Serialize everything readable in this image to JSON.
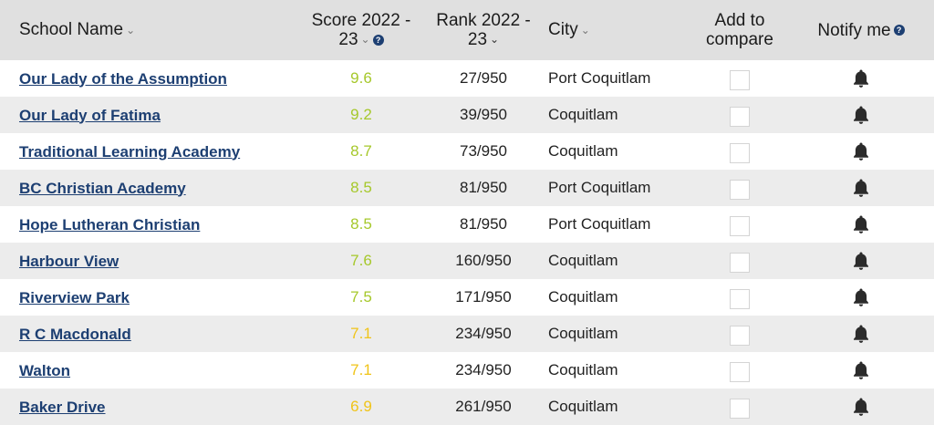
{
  "header": {
    "school_name": "School Name",
    "score_line1": "Score 2022 -",
    "score_line2": "23",
    "rank_line1": "Rank 2022 -",
    "rank_line2": "23",
    "city": "City",
    "compare_line1": "Add to",
    "compare_line2": "compare",
    "notify": "Notify me",
    "info_glyph": "?"
  },
  "colors": {
    "score_green": "#a6c82b",
    "score_yellow": "#f0c419",
    "link": "#1d3f72",
    "header_bg": "#e0e0e0",
    "stripe_bg": "#ececec"
  },
  "rows": [
    {
      "name": "Our Lady of the Assumption",
      "score": "9.6",
      "rank": "27/950",
      "city": "Port Coquitlam"
    },
    {
      "name": "Our Lady of Fatima",
      "score": "9.2",
      "rank": "39/950",
      "city": "Coquitlam"
    },
    {
      "name": "Traditional Learning Academy",
      "score": "8.7",
      "rank": "73/950",
      "city": "Coquitlam"
    },
    {
      "name": "BC Christian Academy",
      "score": "8.5",
      "rank": "81/950",
      "city": "Port Coquitlam"
    },
    {
      "name": "Hope Lutheran Christian",
      "score": "8.5",
      "rank": "81/950",
      "city": "Port Coquitlam"
    },
    {
      "name": "Harbour View",
      "score": "7.6",
      "rank": "160/950",
      "city": "Coquitlam"
    },
    {
      "name": "Riverview Park",
      "score": "7.5",
      "rank": "171/950",
      "city": "Coquitlam"
    },
    {
      "name": "R C Macdonald",
      "score": "7.1",
      "rank": "234/950",
      "city": "Coquitlam"
    },
    {
      "name": "Walton",
      "score": "7.1",
      "rank": "234/950",
      "city": "Coquitlam"
    },
    {
      "name": "Baker Drive",
      "score": "6.9",
      "rank": "261/950",
      "city": "Coquitlam"
    }
  ]
}
